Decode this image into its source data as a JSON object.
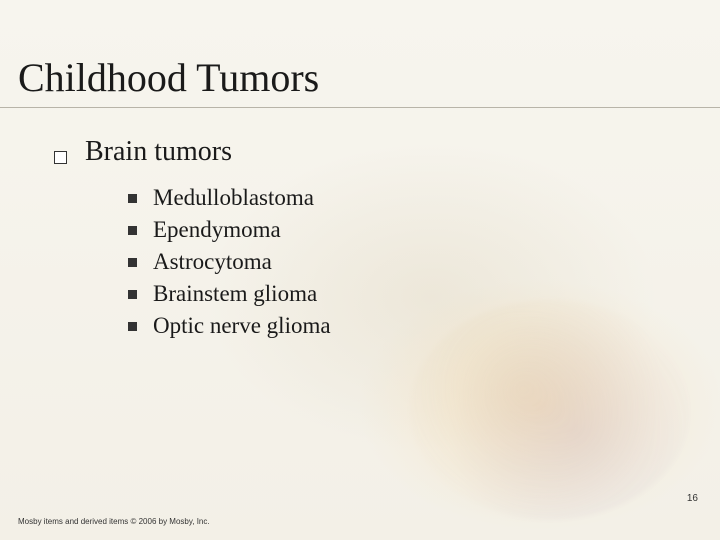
{
  "title": "Childhood Tumors",
  "level1": {
    "text": "Brain tumors"
  },
  "subitems": [
    {
      "label": "Medulloblastoma"
    },
    {
      "label": "Ependymoma"
    },
    {
      "label": "Astrocytoma"
    },
    {
      "label": "Brainstem glioma"
    },
    {
      "label": "Optic nerve glioma"
    }
  ],
  "pagenum": "16",
  "copyright": "Mosby items and derived items © 2006 by Mosby, Inc.",
  "colors": {
    "text": "#1a1a1a",
    "rule": "#b8b4a8",
    "background": "#faf8f2"
  }
}
